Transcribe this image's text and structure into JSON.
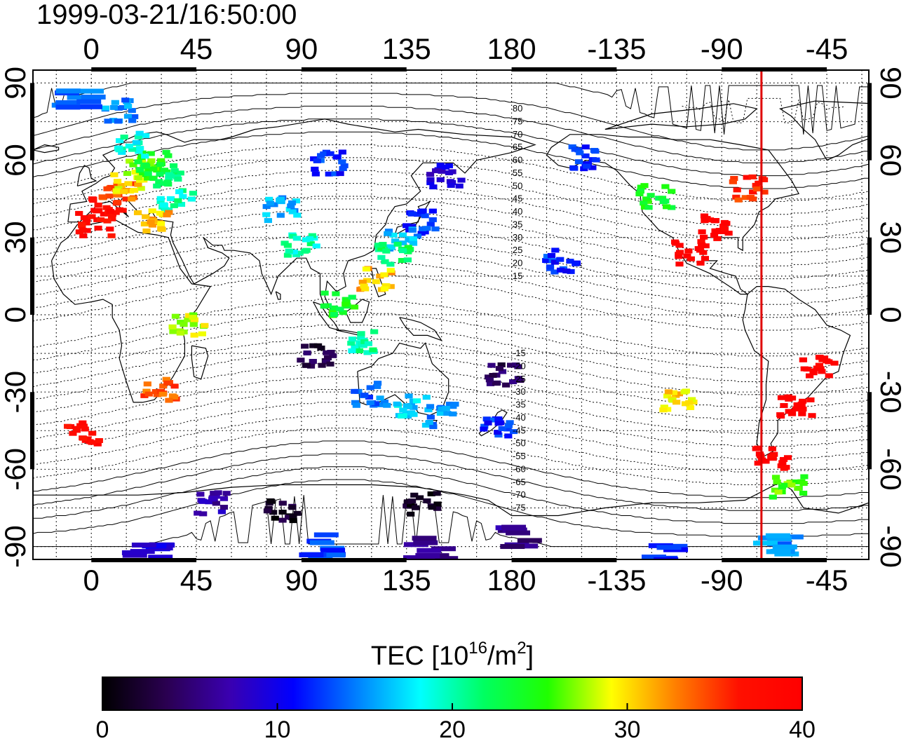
{
  "timestamp": "1999-03-21/16:50:00",
  "map": {
    "lon_ticks": [
      {
        "lon": 0,
        "label": "0"
      },
      {
        "lon": 45,
        "label": "45"
      },
      {
        "lon": 90,
        "label": "90"
      },
      {
        "lon": 135,
        "label": "135"
      },
      {
        "lon": 180,
        "label": "180"
      },
      {
        "lon": 225,
        "label": "-135"
      },
      {
        "lon": 270,
        "label": "-90"
      },
      {
        "lon": 315,
        "label": "-45"
      }
    ],
    "lat_ticks": [
      {
        "lat": 90,
        "label": "90"
      },
      {
        "lat": 60,
        "label": "60"
      },
      {
        "lat": 30,
        "label": "30"
      },
      {
        "lat": 0,
        "label": "0"
      },
      {
        "lat": -30,
        "label": "-30"
      },
      {
        "lat": -60,
        "label": "-60"
      },
      {
        "lat": -90,
        "label": "-90"
      }
    ],
    "lon_range": [
      -25,
      333
    ],
    "lat_range": [
      -95,
      95
    ],
    "grid": "dotted",
    "contour_labels": [
      {
        "lat": 80,
        "label": "80"
      },
      {
        "lat": 75,
        "label": "75"
      },
      {
        "lat": 70,
        "label": "70"
      },
      {
        "lat": 65,
        "label": "65"
      },
      {
        "lat": 60,
        "label": "60"
      },
      {
        "lat": 55,
        "label": "55"
      },
      {
        "lat": 50,
        "label": "50"
      },
      {
        "lat": 45,
        "label": "45"
      },
      {
        "lat": 40,
        "label": "40"
      },
      {
        "lat": 35,
        "label": "35"
      },
      {
        "lat": 30,
        "label": "30"
      },
      {
        "lat": 25,
        "label": "25"
      },
      {
        "lat": 20,
        "label": "20"
      },
      {
        "lat": 15,
        "label": "15"
      },
      {
        "lat": -15,
        "label": "-15"
      },
      {
        "lat": -20,
        "label": "-20"
      },
      {
        "lat": -25,
        "label": "-25"
      },
      {
        "lat": -30,
        "label": "-30"
      },
      {
        "lat": -35,
        "label": "-35"
      },
      {
        "lat": -40,
        "label": "-40"
      },
      {
        "lat": -45,
        "label": "-45"
      },
      {
        "lat": -50,
        "label": "-50"
      },
      {
        "lat": -55,
        "label": "-55"
      },
      {
        "lat": -60,
        "label": "-60"
      },
      {
        "lat": -65,
        "label": "-65"
      },
      {
        "lat": -70,
        "label": "-70"
      },
      {
        "lat": -75,
        "label": "-75"
      }
    ],
    "marker_line": {
      "lon": 287,
      "color": "#e00000"
    },
    "tec_clusters": [
      {
        "lon": 5,
        "lat": 42,
        "tec": 38
      },
      {
        "lon": 10,
        "lat": 48,
        "tec": 34
      },
      {
        "lon": 15,
        "lat": 53,
        "tec": 30
      },
      {
        "lon": 20,
        "lat": 57,
        "tec": 27
      },
      {
        "lon": 25,
        "lat": 60,
        "tec": 24
      },
      {
        "lon": 30,
        "lat": 55,
        "tec": 22
      },
      {
        "lon": 35,
        "lat": 45,
        "tec": 20
      },
      {
        "lon": 25,
        "lat": 38,
        "tec": 31
      },
      {
        "lon": 0,
        "lat": 36,
        "tec": 38
      },
      {
        "lon": 15,
        "lat": 67,
        "tec": 19
      },
      {
        "lon": 10,
        "lat": 80,
        "tec": 15
      },
      {
        "lon": -10,
        "lat": 85,
        "tec": 14
      },
      {
        "lon": 28,
        "lat": -28,
        "tec": 34
      },
      {
        "lon": -5,
        "lat": -45,
        "tec": 38
      },
      {
        "lon": 40,
        "lat": -3,
        "tec": 28
      },
      {
        "lon": 80,
        "lat": 42,
        "tec": 16
      },
      {
        "lon": 100,
        "lat": 60,
        "tec": 12
      },
      {
        "lon": 88,
        "lat": 28,
        "tec": 20
      },
      {
        "lon": 140,
        "lat": 37,
        "tec": 12
      },
      {
        "lon": 132,
        "lat": 30,
        "tec": 16
      },
      {
        "lon": 128,
        "lat": 25,
        "tec": 22
      },
      {
        "lon": 120,
        "lat": 15,
        "tec": 31
      },
      {
        "lon": 105,
        "lat": 5,
        "tec": 24
      },
      {
        "lon": 115,
        "lat": -10,
        "tec": 20
      },
      {
        "lon": 135,
        "lat": -35,
        "tec": 17
      },
      {
        "lon": 118,
        "lat": -30,
        "tec": 14
      },
      {
        "lon": 148,
        "lat": -38,
        "tec": 15
      },
      {
        "lon": 173,
        "lat": -42,
        "tec": 12
      },
      {
        "lon": 175,
        "lat": -22,
        "tec": 4
      },
      {
        "lon": 95,
        "lat": -15,
        "tec": 3
      },
      {
        "lon": 150,
        "lat": 55,
        "tec": 9
      },
      {
        "lon": 210,
        "lat": 62,
        "tec": 12
      },
      {
        "lon": 200,
        "lat": 22,
        "tec": 12
      },
      {
        "lon": 240,
        "lat": 47,
        "tec": 24
      },
      {
        "lon": 265,
        "lat": 35,
        "tec": 40
      },
      {
        "lon": 255,
        "lat": 25,
        "tec": 40
      },
      {
        "lon": 280,
        "lat": 50,
        "tec": 36
      },
      {
        "lon": 310,
        "lat": -20,
        "tec": 40
      },
      {
        "lon": 300,
        "lat": -35,
        "tec": 40
      },
      {
        "lon": 290,
        "lat": -55,
        "tec": 40
      },
      {
        "lon": 297,
        "lat": -66,
        "tec": 26
      },
      {
        "lon": 250,
        "lat": -33,
        "tec": 30
      },
      {
        "lon": 50,
        "lat": -72,
        "tec": 7
      },
      {
        "lon": 80,
        "lat": -75,
        "tec": 2
      },
      {
        "lon": 140,
        "lat": -72,
        "tec": 1
      },
      {
        "lon": 180,
        "lat": -85,
        "tec": 6
      },
      {
        "lon": 20,
        "lat": -92,
        "tec": 9
      },
      {
        "lon": 95,
        "lat": -89,
        "tec": 13
      },
      {
        "lon": 140,
        "lat": -90,
        "tec": 6
      },
      {
        "lon": 240,
        "lat": -92,
        "tec": 12
      },
      {
        "lon": 290,
        "lat": -89,
        "tec": 15
      }
    ]
  },
  "colorbar": {
    "title_main": "TEC  [10",
    "title_exp": "16",
    "title_unit": "/m",
    "title_sq": "2",
    "title_close": "]",
    "min": 0,
    "max": 40,
    "ticks": [
      "0",
      "10",
      "20",
      "30",
      "40"
    ],
    "colormap": [
      "#000000",
      "#2a0050",
      "#3a00b0",
      "#0000ff",
      "#0080ff",
      "#00ffff",
      "#00ff60",
      "#20ff00",
      "#ffff00",
      "#ff8000",
      "#ff1000",
      "#ff0000"
    ]
  }
}
